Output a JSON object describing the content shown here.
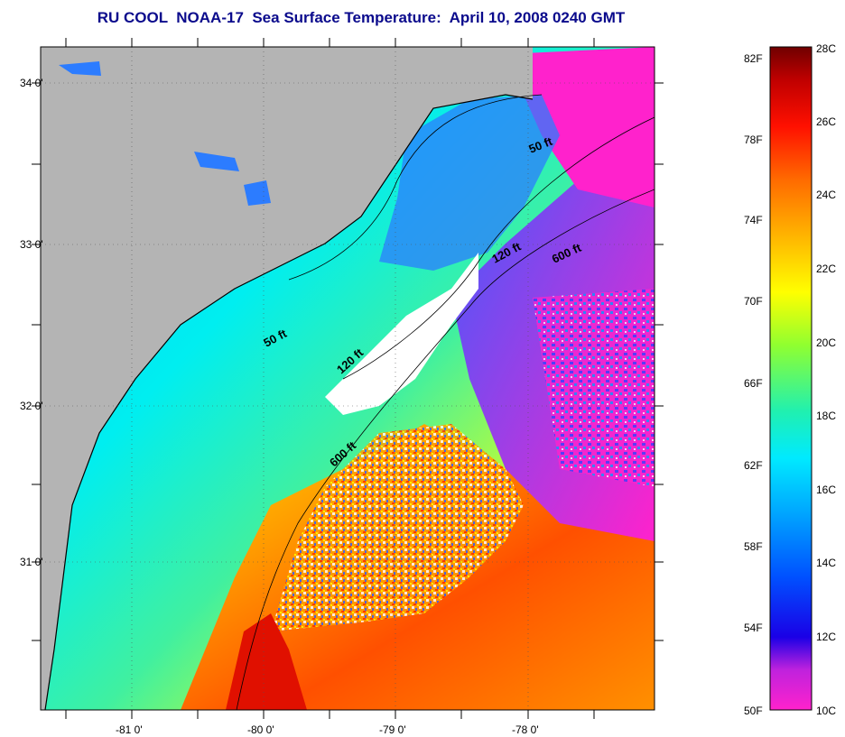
{
  "title": "RU COOL  NOAA-17  Sea Surface Temperature:  April 10, 2008 0240 GMT",
  "colors": {
    "land": "#b4b4b4",
    "title": "#0a0a8c",
    "cloud": "#ffffff"
  },
  "axes": {
    "lat_labels": [
      "34 0'",
      "33 0'",
      "32 0'",
      "31 0'"
    ],
    "lon_labels": [
      "-81 0'",
      "-80 0'",
      "-79 0'",
      "-78 0'"
    ]
  },
  "isobaths": [
    "50 ft",
    "50 ft",
    "120 ft",
    "120 ft",
    "600 ft",
    "600 ft"
  ],
  "colorbar": {
    "fahrenheit_labels": [
      "82F",
      "78F",
      "74F",
      "70F",
      "66F",
      "62F",
      "58F",
      "54F",
      "50F"
    ],
    "celsius_labels": [
      "28C",
      "26C",
      "24C",
      "22C",
      "20C",
      "18C",
      "16C",
      "14C",
      "12C",
      "10C"
    ],
    "range_c": [
      10,
      28
    ],
    "colormap": [
      "#ff22cc",
      "#7a22cc",
      "#1a00e6",
      "#0040ff",
      "#00a0ff",
      "#00eaff",
      "#20f0b0",
      "#7fff40",
      "#ffff00",
      "#ffb000",
      "#ff6000",
      "#ff1000",
      "#c00000",
      "#700000"
    ]
  }
}
